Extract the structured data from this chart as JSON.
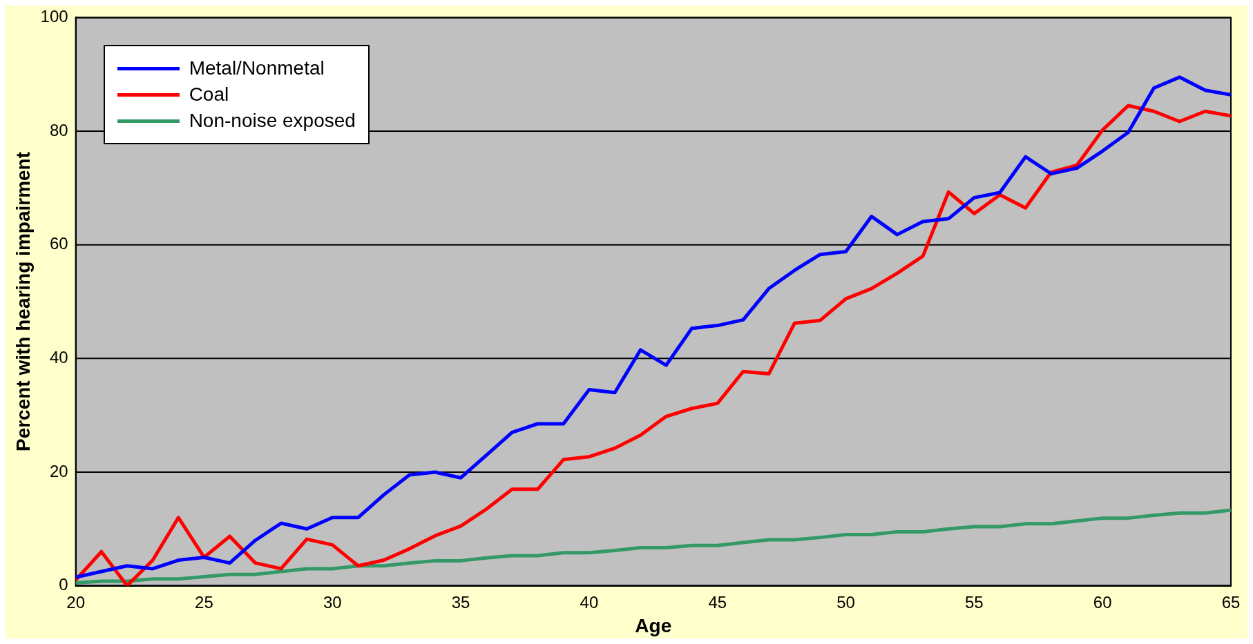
{
  "chart_data": {
    "type": "line",
    "xlabel": "Age",
    "ylabel": "Percent with hearing impairment",
    "x": [
      20,
      21,
      22,
      23,
      24,
      25,
      26,
      27,
      28,
      29,
      30,
      31,
      32,
      33,
      34,
      35,
      36,
      37,
      38,
      39,
      40,
      41,
      42,
      43,
      44,
      45,
      46,
      47,
      48,
      49,
      50,
      51,
      52,
      53,
      54,
      55,
      56,
      57,
      58,
      59,
      60,
      61,
      62,
      63,
      64,
      65
    ],
    "series": [
      {
        "name": "Metal/Nonmetal",
        "color": "#0000ff",
        "values": [
          1.5,
          2.5,
          3.5,
          3,
          4.5,
          5,
          4,
          8,
          11,
          10,
          12,
          12,
          16,
          19.5,
          20,
          19,
          23,
          27,
          28.5,
          28.5,
          34.5,
          34,
          41.5,
          38.8,
          45.3,
          45.8,
          46.8,
          52.3,
          55.5,
          58.3,
          58.8,
          65,
          61.8,
          64.1,
          64.6,
          68.3,
          69.2,
          75.5,
          72.5,
          73.5,
          76.5,
          79.8,
          87.6,
          89.5,
          87.2,
          86.4
        ]
      },
      {
        "name": "Coal",
        "color": "#ff0000",
        "values": [
          1,
          6,
          0,
          4.5,
          12,
          5,
          8.7,
          4,
          3,
          8.2,
          7.2,
          3.5,
          4.5,
          6.5,
          8.8,
          10.5,
          13.5,
          17,
          17,
          22.2,
          22.7,
          24.2,
          26.5,
          29.8,
          31.2,
          32.1,
          37.7,
          37.3,
          46.2,
          46.7,
          50.5,
          52.3,
          55,
          58,
          69.3,
          65.5,
          68.8,
          66.5,
          72.8,
          74,
          80.2,
          84.5,
          83.5,
          81.7,
          83.5,
          82.7
        ]
      },
      {
        "name": "Non-noise exposed",
        "color": "#339966",
        "values": [
          0.5,
          0.8,
          0.8,
          1.2,
          1.2,
          1.6,
          2,
          2,
          2.5,
          3,
          3,
          3.5,
          3.5,
          4,
          4.4,
          4.4,
          4.9,
          5.3,
          5.3,
          5.8,
          5.8,
          6.2,
          6.7,
          6.7,
          7.1,
          7.1,
          7.6,
          8.1,
          8.1,
          8.5,
          9,
          9,
          9.5,
          9.5,
          10,
          10.4,
          10.4,
          10.9,
          10.9,
          11.4,
          11.9,
          11.9,
          12.4,
          12.8,
          12.8,
          13.3
        ]
      }
    ],
    "xlim": [
      20,
      65
    ],
    "xticks": [
      20,
      25,
      30,
      35,
      40,
      45,
      50,
      55,
      60,
      65
    ],
    "ylim": [
      0,
      100
    ],
    "yticks": [
      0,
      20,
      40,
      60,
      80,
      100
    ],
    "grid": "y",
    "legend": "top left",
    "marker": "none",
    "line_style": "solid"
  }
}
